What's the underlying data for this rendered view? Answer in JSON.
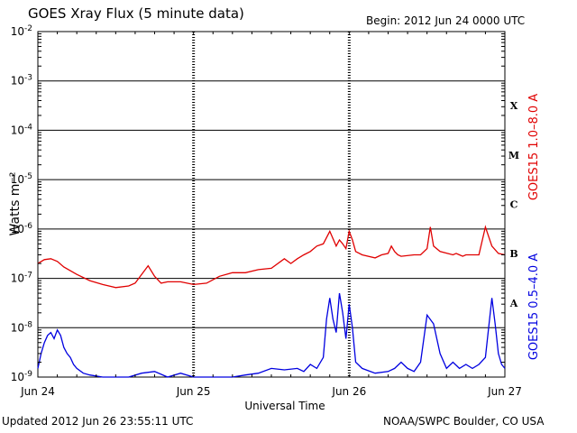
{
  "header": {
    "title": "GOES Xray Flux (5 minute data)",
    "begin": "Begin:  2012 Jun 24 0000 UTC"
  },
  "footer": {
    "updated": "Updated 2012 Jun 26 23:55:11 UTC",
    "credit": "NOAA/SWPC Boulder, CO USA"
  },
  "chart_data": {
    "type": "line",
    "title": "GOES Xray Flux (5 minute data)",
    "xlabel": "Universal Time",
    "ylabel": "Watts m⁻²",
    "yscale": "log",
    "ylim": [
      1e-09,
      0.01
    ],
    "xlim": [
      0,
      72
    ],
    "x_unit": "hours since 2012 Jun 24 0000 UTC",
    "x_ticks": [
      {
        "value": 0,
        "label": "Jun 24"
      },
      {
        "value": 24,
        "label": "Jun 25"
      },
      {
        "value": 48,
        "label": "Jun 26"
      },
      {
        "value": 72,
        "label": "Jun 27"
      }
    ],
    "y_ticks": [
      {
        "base": "10",
        "exp": "-9"
      },
      {
        "base": "10",
        "exp": "-8"
      },
      {
        "base": "10",
        "exp": "-7"
      },
      {
        "base": "10",
        "exp": "-6"
      },
      {
        "base": "10",
        "exp": "-5"
      },
      {
        "base": "10",
        "exp": "-4"
      },
      {
        "base": "10",
        "exp": "-3"
      },
      {
        "base": "10",
        "exp": "-2"
      }
    ],
    "flare_classes": [
      {
        "label": "A",
        "decade": -7.5
      },
      {
        "label": "B",
        "decade": -6.5
      },
      {
        "label": "C",
        "decade": -5.5
      },
      {
        "label": "M",
        "decade": -4.5
      },
      {
        "label": "X",
        "decade": -3.5
      }
    ],
    "grid": true,
    "series": [
      {
        "name": "GOES15 1.0–8.0 A",
        "color": "#e00000",
        "x": [
          0,
          1,
          2,
          3,
          4,
          6,
          8,
          10,
          12,
          14,
          15,
          16,
          17,
          18,
          19,
          20,
          22,
          24,
          26,
          28,
          30,
          32,
          34,
          36,
          38,
          39,
          40,
          41,
          42,
          43,
          44,
          45,
          46,
          46.5,
          47,
          47.5,
          48,
          48.5,
          49,
          50,
          52,
          53,
          54,
          54.5,
          55,
          55.5,
          56,
          58,
          59,
          60,
          60.5,
          61,
          62,
          64,
          64.5,
          65,
          65.5,
          66,
          68,
          69,
          70,
          71,
          72
        ],
        "values": [
          2e-07,
          2.4e-07,
          2.5e-07,
          2.2e-07,
          1.7e-07,
          1.2e-07,
          9e-08,
          7.5e-08,
          6.5e-08,
          7e-08,
          8e-08,
          1.2e-07,
          1.8e-07,
          1.1e-07,
          8e-08,
          8.5e-08,
          8.5e-08,
          7.5e-08,
          8e-08,
          1.1e-07,
          1.3e-07,
          1.3e-07,
          1.5e-07,
          1.6e-07,
          2.5e-07,
          2e-07,
          2.5e-07,
          3e-07,
          3.5e-07,
          4.5e-07,
          5e-07,
          9e-07,
          4.5e-07,
          6e-07,
          5e-07,
          4e-07,
          9e-07,
          6e-07,
          3.5e-07,
          3e-07,
          2.6e-07,
          3e-07,
          3.2e-07,
          4.5e-07,
          3.5e-07,
          3e-07,
          2.8e-07,
          3e-07,
          3e-07,
          4e-07,
          1.1e-06,
          4.5e-07,
          3.5e-07,
          3e-07,
          3.2e-07,
          3e-07,
          2.8e-07,
          3e-07,
          3e-07,
          1.1e-06,
          4.5e-07,
          3.2e-07,
          3e-07
        ]
      },
      {
        "name": "GOES15 0.5–4.0 A",
        "color": "#0000e0",
        "x": [
          0,
          0.5,
          1,
          1.5,
          2,
          2.5,
          3,
          3.5,
          4,
          4.5,
          5,
          5.5,
          6,
          7,
          8,
          10,
          12,
          14,
          16,
          18,
          20,
          22,
          24,
          26,
          28,
          30,
          32,
          34,
          36,
          38,
          40,
          41,
          42,
          43,
          44,
          44.5,
          45,
          45.5,
          46,
          46.5,
          47,
          47.5,
          48,
          48.5,
          49,
          50,
          52,
          54,
          55,
          56,
          57,
          58,
          59,
          60,
          61,
          62,
          63,
          64,
          65,
          66,
          67,
          68,
          69,
          70,
          70.5,
          71,
          71.5,
          72
        ],
        "values": [
          1.5e-09,
          3e-09,
          5e-09,
          7e-09,
          8e-09,
          6e-09,
          9e-09,
          7e-09,
          4e-09,
          3e-09,
          2.5e-09,
          1.8e-09,
          1.5e-09,
          1.2e-09,
          1.1e-09,
          1e-09,
          1e-09,
          1e-09,
          1.2e-09,
          1.3e-09,
          1e-09,
          1.2e-09,
          1e-09,
          1e-09,
          1e-09,
          1e-09,
          1.1e-09,
          1.2e-09,
          1.5e-09,
          1.4e-09,
          1.5e-09,
          1.3e-09,
          1.8e-09,
          1.5e-09,
          2.5e-09,
          1.5e-08,
          4e-08,
          1.5e-08,
          8e-09,
          5e-08,
          2e-08,
          6e-09,
          3e-08,
          1e-08,
          2e-09,
          1.5e-09,
          1.2e-09,
          1.3e-09,
          1.5e-09,
          2e-09,
          1.5e-09,
          1.3e-09,
          2e-09,
          1.8e-08,
          1.2e-08,
          3e-09,
          1.5e-09,
          2e-09,
          1.5e-09,
          1.8e-09,
          1.5e-09,
          1.8e-09,
          2.5e-09,
          4e-08,
          1.2e-08,
          3e-09,
          1.8e-09,
          1.5e-09
        ]
      }
    ]
  }
}
